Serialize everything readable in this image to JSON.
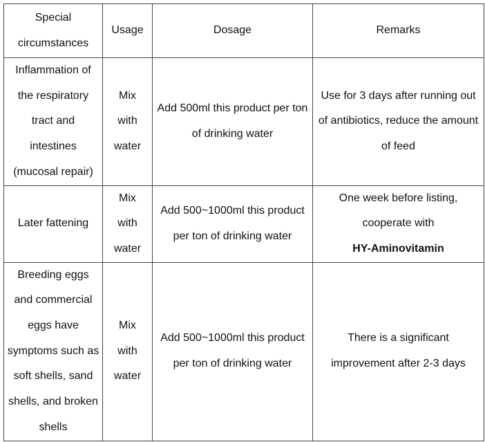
{
  "table": {
    "header": [
      "Special circumstances",
      "Usage",
      "Dosage",
      "Remarks"
    ],
    "rows": [
      [
        "Inflammation of the respiratory tract and intestines (mucosal repair)",
        "Mix with water",
        "Add 500ml this product per ton of drinking water",
        "Use for 3 days after running out of antibiotics, reduce the amount of feed"
      ],
      [
        "Later fattening",
        "Mix with water",
        "Add 500~1000ml this product per ton of drinking water",
        {
          "text": "One week before listing, cooperate with",
          "emphasis": "HY-Aminovitamin"
        }
      ],
      [
        "Breeding eggs and commercial eggs have symptoms such as soft shells, sand shells, and broken shells",
        "Mix with water",
        "Add 500~1000ml this product per ton of drinking water",
        "There is a significant improvement after 2-3 days"
      ]
    ]
  }
}
